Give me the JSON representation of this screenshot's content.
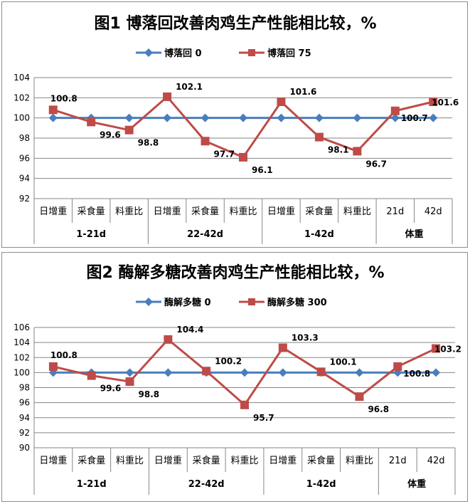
{
  "chart_data": [
    {
      "type": "line",
      "title": "图1 博落回改善肉鸡生产性能相比较，%",
      "categories": [
        "日增重",
        "采食量",
        "料重比",
        "日增重",
        "采食量",
        "料重比",
        "日增重",
        "采食量",
        "料重比",
        "21d",
        "42d"
      ],
      "groups": [
        {
          "label": "1-21d",
          "span": 3
        },
        {
          "label": "22-42d",
          "span": 3
        },
        {
          "label": "1-42d",
          "span": 3
        },
        {
          "label": "体重",
          "span": 2
        }
      ],
      "series": [
        {
          "name": "博落回 0",
          "values": [
            100,
            100,
            100,
            100,
            100,
            100,
            100,
            100,
            100,
            100,
            100
          ],
          "color": "#4a7ebb"
        },
        {
          "name": "博落回 75",
          "values": [
            100.8,
            99.6,
            98.8,
            102.1,
            97.7,
            96.1,
            101.6,
            98.1,
            96.7,
            100.7,
            101.6
          ],
          "color": "#be4b48",
          "labels": [
            "100.8",
            "99.6",
            "98.8",
            "102.1",
            "97.7",
            "96.1",
            "101.6",
            "98.1",
            "96.7",
            "100.7",
            "101.6"
          ]
        }
      ],
      "ylim": [
        92,
        104
      ],
      "ystep": 2,
      "grid": true,
      "legend": "top"
    },
    {
      "type": "line",
      "title": "图2 酶解多糖改善肉鸡生产性能相比较，%",
      "categories": [
        "日增重",
        "采食量",
        "料重比",
        "日增重",
        "采食量",
        "料重比",
        "日增重",
        "采食量",
        "料重比",
        "21d",
        "42d"
      ],
      "groups": [
        {
          "label": "1-21d",
          "span": 3
        },
        {
          "label": "22-42d",
          "span": 3
        },
        {
          "label": "1-42d",
          "span": 3
        },
        {
          "label": "体重",
          "span": 2
        }
      ],
      "series": [
        {
          "name": "酶解多糖 0",
          "values": [
            100,
            100,
            100,
            100,
            100,
            100,
            100,
            100,
            100,
            100,
            100
          ],
          "color": "#4a7ebb"
        },
        {
          "name": "酶解多糖 300",
          "values": [
            100.8,
            99.6,
            98.8,
            104.4,
            100.2,
            95.7,
            103.3,
            100.1,
            96.8,
            100.8,
            103.2
          ],
          "color": "#be4b48",
          "labels": [
            "100.8",
            "99.6",
            "98.8",
            "104.4",
            "100.2",
            "95.7",
            "103.3",
            "100.1",
            "96.8",
            "100.8",
            "103.2"
          ]
        }
      ],
      "ylim": [
        90,
        106
      ],
      "ystep": 2,
      "grid": true,
      "legend": "top"
    }
  ]
}
